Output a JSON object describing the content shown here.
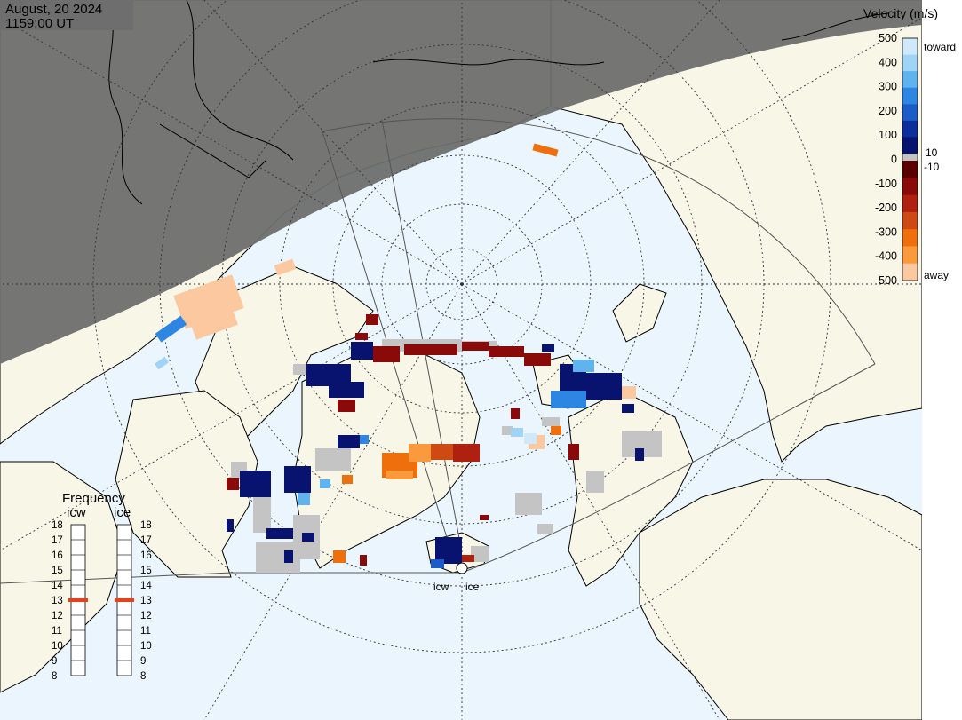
{
  "header": {
    "date": "August, 20 2024",
    "time": "1159:00 UT"
  },
  "colorbar": {
    "title": "Velocity (m/s)",
    "toward_label": "toward",
    "away_label": "away",
    "ticks": [
      "500",
      "400",
      "300",
      "200",
      "100",
      "0",
      "-100",
      "-200",
      "-300",
      "-400",
      "-500"
    ],
    "near_zero_upper": "10",
    "near_zero_lower": "-10",
    "toward_colors": [
      "#cfe9fb",
      "#9fd4f7",
      "#5fb4f0",
      "#2e86e3",
      "#1c5cc8",
      "#0d2f9e",
      "#07136e"
    ],
    "away_colors": [
      "#5a0000",
      "#8a0a0a",
      "#b02010",
      "#cf4a12",
      "#ee6f0c",
      "#fb9a3c",
      "#fcc8a0"
    ],
    "ground_scatter_color": "#c4c4c4"
  },
  "frequency": {
    "title": "Frequency",
    "radars": [
      {
        "label": "icw",
        "value": 13
      },
      {
        "label": "ice",
        "value": 13
      }
    ],
    "ticks": [
      "18",
      "17",
      "16",
      "15",
      "14",
      "13",
      "12",
      "11",
      "10",
      "9",
      "8"
    ],
    "marker_color": "#e8401c"
  },
  "map": {
    "radar_labels": [
      "icw",
      "ice"
    ],
    "night_color": "#6e6e6e",
    "land_color": "#f7f6e7",
    "ocean_color": "#eaf5fd"
  }
}
